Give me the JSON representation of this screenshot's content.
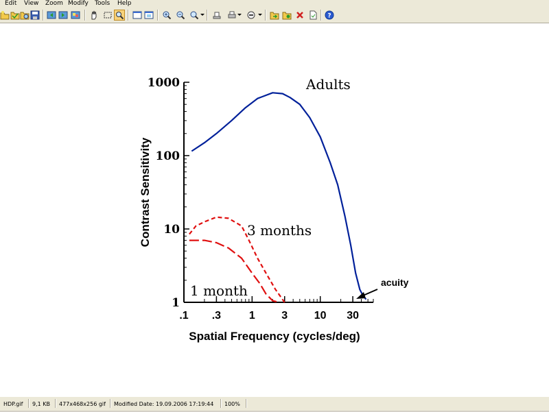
{
  "menubar": {
    "items": [
      {
        "label": "Edit"
      },
      {
        "label": "View"
      },
      {
        "label": "Zoom"
      },
      {
        "label": "Modify"
      },
      {
        "label": "Tools"
      },
      {
        "label": "Help"
      }
    ]
  },
  "toolbar": {
    "icons": [
      "new-folder-icon",
      "open-icon",
      "browse-icon",
      "save-icon",
      "prev-image-icon",
      "next-image-icon",
      "slideshow-icon",
      "hand-tool-icon",
      "select-rect-icon",
      "magic-zoom-icon",
      "fit-window-icon",
      "full-screen-icon",
      "zoom-in-icon",
      "zoom-out-icon",
      "zoom-dropdown-icon",
      "scanner-icon",
      "print-dropdown-icon",
      "filter-dropdown-icon",
      "copy-to-icon",
      "move-to-icon",
      "delete-icon",
      "properties-icon",
      "help-icon"
    ]
  },
  "colors": {
    "adults": "#00209a",
    "infants": "#e01010",
    "ui_face": "#ece9d8"
  },
  "chart_data": {
    "type": "line",
    "ylabel": "Contrast Sensitivity",
    "xlabel": "Spatial Frequency (cycles/deg)",
    "x_scale": "log",
    "y_scale": "log",
    "xlim": [
      0.1,
      60
    ],
    "ylim": [
      1,
      1000
    ],
    "x_tick_labels": [
      ".1",
      ".3",
      "1",
      "3",
      "10",
      "30"
    ],
    "x_ticks": [
      0.1,
      0.3,
      1,
      3,
      10,
      30
    ],
    "y_tick_labels": [
      "1000",
      "100",
      "10",
      "1"
    ],
    "y_ticks": [
      1000,
      100,
      10,
      1
    ],
    "series": [
      {
        "name": "Adults",
        "style": "solid",
        "color": "#00209a",
        "x": [
          0.13,
          0.2,
          0.3,
          0.5,
          0.8,
          1.2,
          2.0,
          2.8,
          3.6,
          5.0,
          7.0,
          10.0,
          14.0,
          18.0,
          23.0,
          28.0,
          33.0,
          38.0,
          43.0,
          47.0
        ],
        "y": [
          115,
          150,
          200,
          300,
          450,
          600,
          720,
          700,
          620,
          500,
          330,
          180,
          80,
          40,
          15,
          6,
          2.5,
          1.5,
          1.2,
          1.1
        ]
      },
      {
        "name": "3 months",
        "style": "dashed",
        "color": "#e01010",
        "x": [
          0.12,
          0.15,
          0.2,
          0.3,
          0.45,
          0.7,
          0.9,
          1.2,
          1.6,
          2.2,
          3.0
        ],
        "y": [
          8.5,
          11,
          12.5,
          14.5,
          14,
          11,
          7,
          4,
          2.5,
          1.5,
          1.0
        ]
      },
      {
        "name": "1 month",
        "style": "long-dashed",
        "color": "#e01010",
        "x": [
          0.12,
          0.2,
          0.3,
          0.45,
          0.7,
          1.0,
          1.3,
          1.6,
          2.0,
          2.5
        ],
        "y": [
          7,
          7,
          6.5,
          5.5,
          4,
          2.5,
          1.8,
          1.3,
          1.05,
          1.0
        ]
      }
    ],
    "annotations": [
      {
        "text": "Adults"
      },
      {
        "text": "3 months"
      },
      {
        "text": "1 month"
      },
      {
        "text": "acuity"
      }
    ]
  },
  "statusbar": {
    "filename": "HDP.gif",
    "filesize": "9,1 KB",
    "dimensions": "477x468x256 gif",
    "modified": "Modified Date: 19.09.2006 17:19:44",
    "zoom": "100%"
  }
}
